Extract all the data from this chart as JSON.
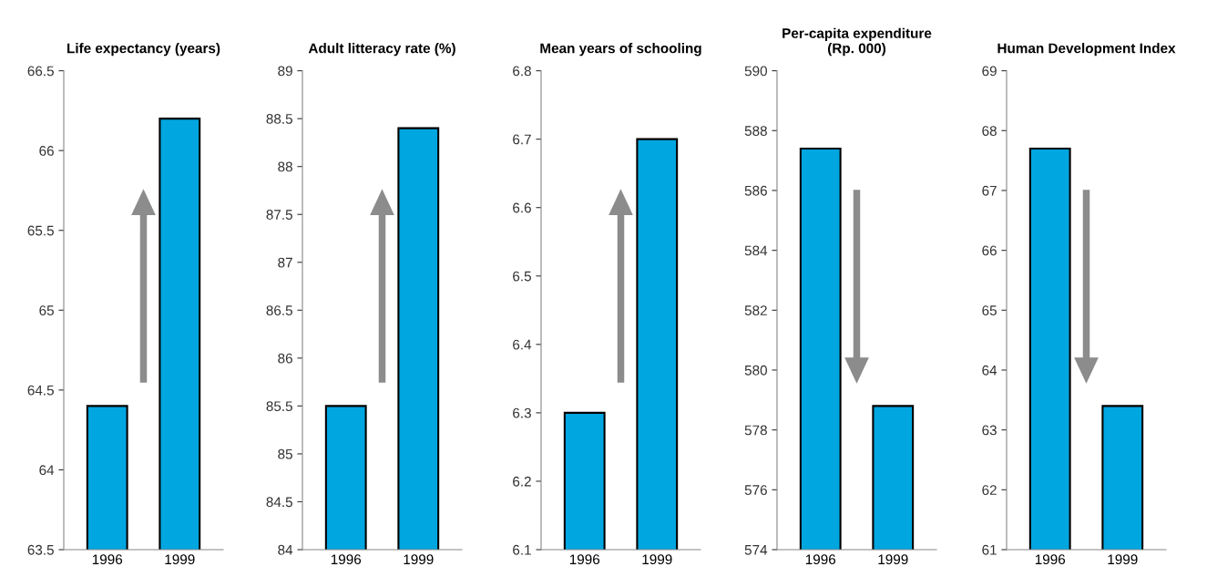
{
  "chart_data": [
    {
      "type": "bar",
      "title": "Life expectancy (years)",
      "categories": [
        "1996",
        "1999"
      ],
      "values": [
        64.4,
        66.2
      ],
      "color": "#00a6e0",
      "ylim": [
        63.5,
        66.5
      ],
      "yticks": [
        63.5,
        64,
        64.5,
        65,
        65.5,
        66,
        66.5
      ],
      "grid": false
    },
    {
      "type": "bar",
      "title": "Adult litteracy rate (%)",
      "categories": [
        "1996",
        "1999"
      ],
      "values": [
        85.5,
        88.4
      ],
      "color": "#00a6e0",
      "ylim": [
        84,
        89
      ],
      "yticks": [
        84,
        84.5,
        85,
        85.5,
        86,
        86.5,
        87,
        87.5,
        88,
        88.5,
        89
      ],
      "grid": false
    },
    {
      "type": "bar",
      "title": "Mean years of schooling",
      "categories": [
        "1996",
        "1999"
      ],
      "values": [
        6.3,
        6.7
      ],
      "color": "#00a6e0",
      "ylim": [
        6.1,
        6.8
      ],
      "yticks": [
        6.1,
        6.2,
        6.3,
        6.4,
        6.5,
        6.6,
        6.7,
        6.8
      ],
      "grid": false
    },
    {
      "type": "bar",
      "title": "Per-capita expenditure\n(Rp. 000)",
      "categories": [
        "1996",
        "1999"
      ],
      "values": [
        587.4,
        578.8
      ],
      "color": "#00a6e0",
      "ylim": [
        574,
        590
      ],
      "yticks": [
        574,
        576,
        578,
        580,
        582,
        584,
        586,
        588,
        590
      ],
      "grid": false
    },
    {
      "type": "bar",
      "title": "Human Development Index",
      "categories": [
        "1996",
        "1999"
      ],
      "values": [
        67.7,
        63.4
      ],
      "color": "#00a6e0",
      "ylim": [
        61,
        69
      ],
      "yticks": [
        61,
        62,
        63,
        64,
        65,
        66,
        67,
        68,
        69
      ],
      "grid": false
    }
  ]
}
